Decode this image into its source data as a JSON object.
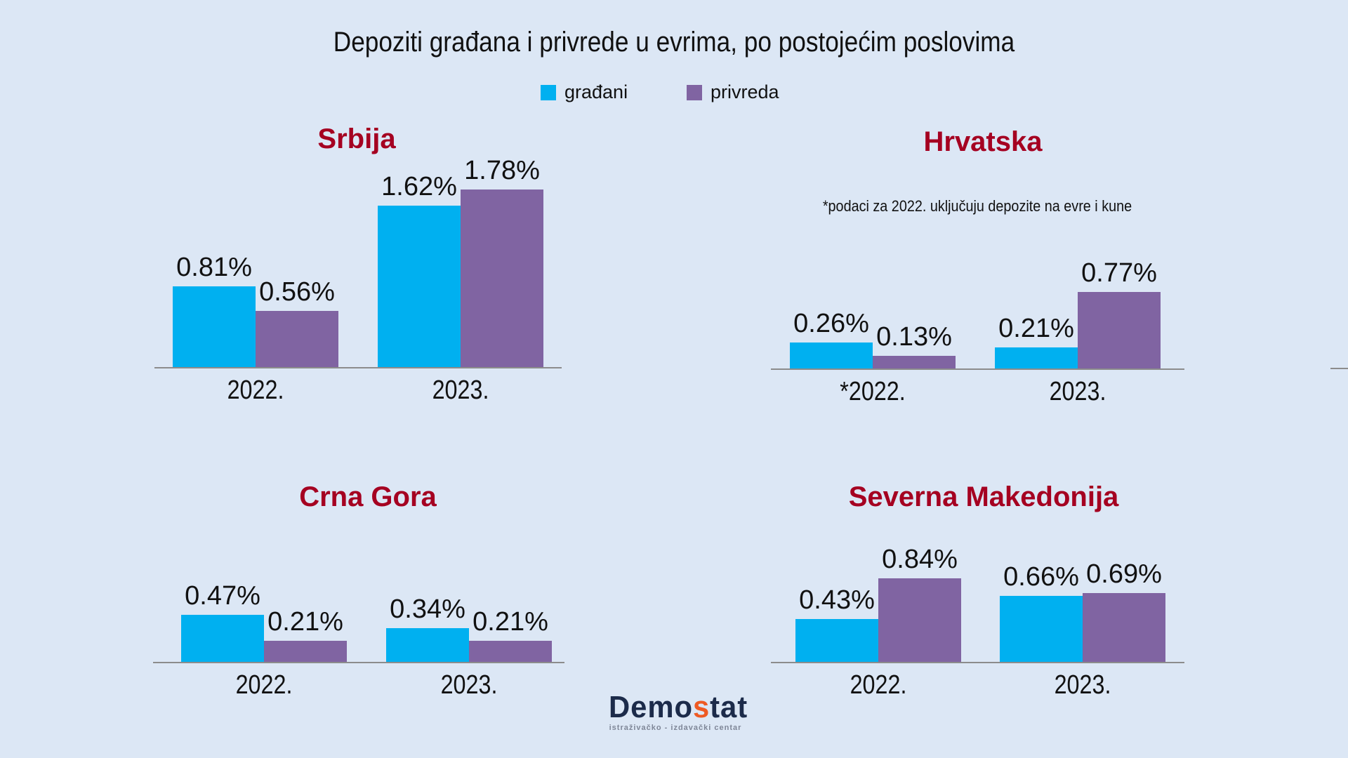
{
  "title": "Depoziti građana i privrede u evrima, po postojećim poslovima",
  "legend": [
    {
      "label": "građani",
      "color": "#00b0f0"
    },
    {
      "label": "privreda",
      "color": "#8064a2"
    }
  ],
  "chart_data": [
    {
      "type": "bar",
      "title": "Srbija",
      "categories": [
        "2022.",
        "2023."
      ],
      "series": [
        {
          "name": "građani",
          "values": [
            0.81,
            1.62
          ],
          "labels": [
            "0.81%",
            "1.62%"
          ]
        },
        {
          "name": "privreda",
          "values": [
            0.56,
            1.78
          ],
          "labels": [
            "0.56%",
            "1.78%"
          ]
        }
      ],
      "unit": "%"
    },
    {
      "type": "bar",
      "title": "Hrvatska",
      "note": "*podaci za 2022. uključuju depozite na evre i kune",
      "categories": [
        "*2022.",
        "2023."
      ],
      "series": [
        {
          "name": "građani",
          "values": [
            0.26,
            0.21
          ],
          "labels": [
            "0.26%",
            "0.21%"
          ]
        },
        {
          "name": "privreda",
          "values": [
            0.13,
            0.77
          ],
          "labels": [
            "0.13%",
            "0.77%"
          ]
        }
      ],
      "unit": "%"
    },
    {
      "type": "bar",
      "title": "Crna Gora",
      "categories": [
        "2022.",
        "2023."
      ],
      "series": [
        {
          "name": "građani",
          "values": [
            0.47,
            0.34
          ],
          "labels": [
            "0.47%",
            "0.34%"
          ]
        },
        {
          "name": "privreda",
          "values": [
            0.21,
            0.21
          ],
          "labels": [
            "0.21%",
            "0.21%"
          ]
        }
      ],
      "unit": "%"
    },
    {
      "type": "bar",
      "title": "Severna Makedonija",
      "categories": [
        "2022.",
        "2023."
      ],
      "series": [
        {
          "name": "građani",
          "values": [
            0.43,
            0.66
          ],
          "labels": [
            "0.43%",
            "0.66%"
          ]
        },
        {
          "name": "privreda",
          "values": [
            0.84,
            0.69
          ],
          "labels": [
            "0.84%",
            "0.69%"
          ]
        }
      ],
      "unit": "%"
    }
  ],
  "logo": {
    "name": "Demostat",
    "tagline": "istraživačko - izdavački  centar"
  }
}
